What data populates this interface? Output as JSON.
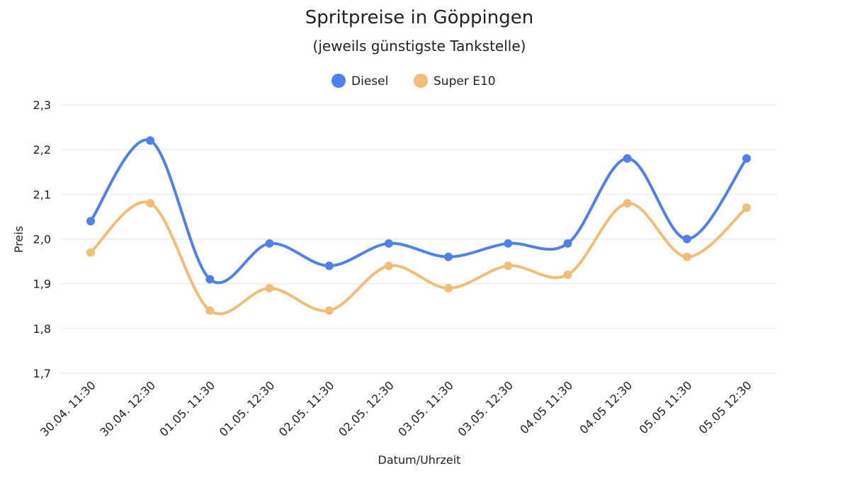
{
  "chart_data": {
    "type": "line",
    "title": "Spritpreise in Göppingen",
    "subtitle": "(jeweils günstigste Tankstelle)",
    "xlabel": "Datum/Uhrzeit",
    "ylabel": "Preis",
    "categories": [
      "30.04. 11:30",
      "30.04. 12:30",
      "01.05. 11:30",
      "01.05. 12:30",
      "02.05. 11:30",
      "02.05. 12:30",
      "03.05. 11:30",
      "03.05. 12:30",
      "04.05 11:30",
      "04.05 12:30",
      "05.05 11:30",
      "05.05 12:30"
    ],
    "series": [
      {
        "name": "Diesel",
        "color": "#5080e8",
        "values": [
          2.04,
          2.22,
          1.91,
          1.99,
          1.94,
          1.99,
          1.96,
          1.99,
          1.99,
          2.18,
          2.0,
          2.18
        ]
      },
      {
        "name": "Super E10",
        "color": "#f0be78",
        "values": [
          1.97,
          2.08,
          1.84,
          1.89,
          1.84,
          1.94,
          1.89,
          1.94,
          1.92,
          2.08,
          1.96,
          2.07
        ]
      }
    ],
    "ylim": [
      1.7,
      2.3
    ],
    "yticks": [
      1.7,
      1.8,
      1.9,
      2.0,
      2.1,
      2.2,
      2.3
    ],
    "ytick_labels": [
      "1,7",
      "1,8",
      "1,9",
      "2,0",
      "2,1",
      "2,2",
      "2,3"
    ],
    "grid": true,
    "legend": "top-center",
    "smooth": true
  }
}
